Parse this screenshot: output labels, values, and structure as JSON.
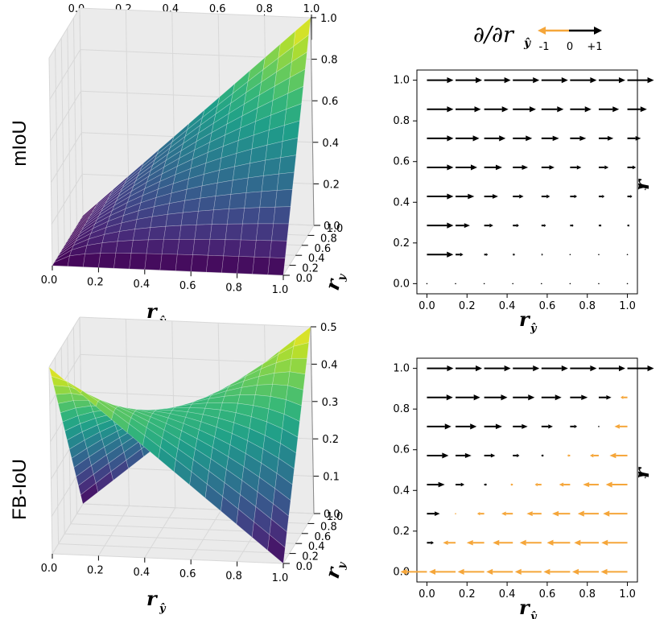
{
  "colorbar": {
    "ticks": [
      "0.0",
      "0.2",
      "0.4",
      "0.6",
      "0.8",
      "1.0"
    ],
    "colormap": "viridis"
  },
  "legend": {
    "title": "∂/∂r",
    "title_sub": "ŷ",
    "neg_label": "-1",
    "zero_label": "0",
    "pos_label": "+1",
    "neg_color": "#f5a63a",
    "pos_color": "#000000"
  },
  "rows": [
    {
      "label": "mIoU"
    },
    {
      "label": "FB-IoU"
    }
  ],
  "axis_labels": {
    "x_main": "r",
    "x_sub": "ŷ",
    "y_main": "r",
    "y_sub": "y"
  },
  "chart_data": [
    {
      "type": "surface3d",
      "name": "mIoU",
      "x_ticks": [
        "0.0",
        "0.2",
        "0.4",
        "0.6",
        "0.8",
        "1.0"
      ],
      "y_ticks": [
        "0.0",
        "0.2",
        "0.4",
        "0.6",
        "0.8",
        "1.0"
      ],
      "z_ticks": [
        "0.0",
        "0.2",
        "0.4",
        "0.6",
        "0.8",
        "1.0"
      ],
      "zlim": [
        0,
        1
      ],
      "corners": {
        "x0y0": 0.0,
        "x1y0": 0.0,
        "x0y1": 0.0,
        "x1y1": 1.0
      },
      "grid_n": 15
    },
    {
      "type": "quiver",
      "name": "mIoU gradient",
      "x_ticks": [
        "0.0",
        "0.2",
        "0.4",
        "0.6",
        "0.8",
        "1.0"
      ],
      "y_ticks": [
        "0.0",
        "0.2",
        "0.4",
        "0.6",
        "0.8",
        "1.0"
      ],
      "xlim": [
        -0.05,
        1.05
      ],
      "ylim": [
        -0.05,
        1.05
      ],
      "grid": [
        0,
        0.142857,
        0.285714,
        0.428571,
        0.571429,
        0.714286,
        0.857143,
        1.0
      ],
      "function": "mIoU"
    },
    {
      "type": "surface3d",
      "name": "FB-IoU",
      "x_ticks": [
        "0.0",
        "0.2",
        "0.4",
        "0.6",
        "0.8",
        "1.0"
      ],
      "y_ticks": [
        "0.0",
        "0.2",
        "0.4",
        "0.6",
        "0.8",
        "1.0"
      ],
      "z_ticks": [
        "0.0",
        "0.1",
        "0.2",
        "0.3",
        "0.4",
        "0.5"
      ],
      "zlim": [
        0,
        0.5
      ],
      "corners": {
        "x0y0": 0.0,
        "x1y0": 0.0,
        "x0y1": 0.5,
        "x1y1": 0.5
      },
      "grid_n": 15
    },
    {
      "type": "quiver",
      "name": "FB-IoU gradient",
      "x_ticks": [
        "0.0",
        "0.2",
        "0.4",
        "0.6",
        "0.8",
        "1.0"
      ],
      "y_ticks": [
        "0.0",
        "0.2",
        "0.4",
        "0.6",
        "0.8",
        "1.0"
      ],
      "xlim": [
        -0.05,
        1.05
      ],
      "ylim": [
        -0.05,
        1.05
      ],
      "grid": [
        0,
        0.142857,
        0.285714,
        0.428571,
        0.571429,
        0.714286,
        0.857143,
        1.0
      ],
      "function": "FB-IoU"
    }
  ]
}
